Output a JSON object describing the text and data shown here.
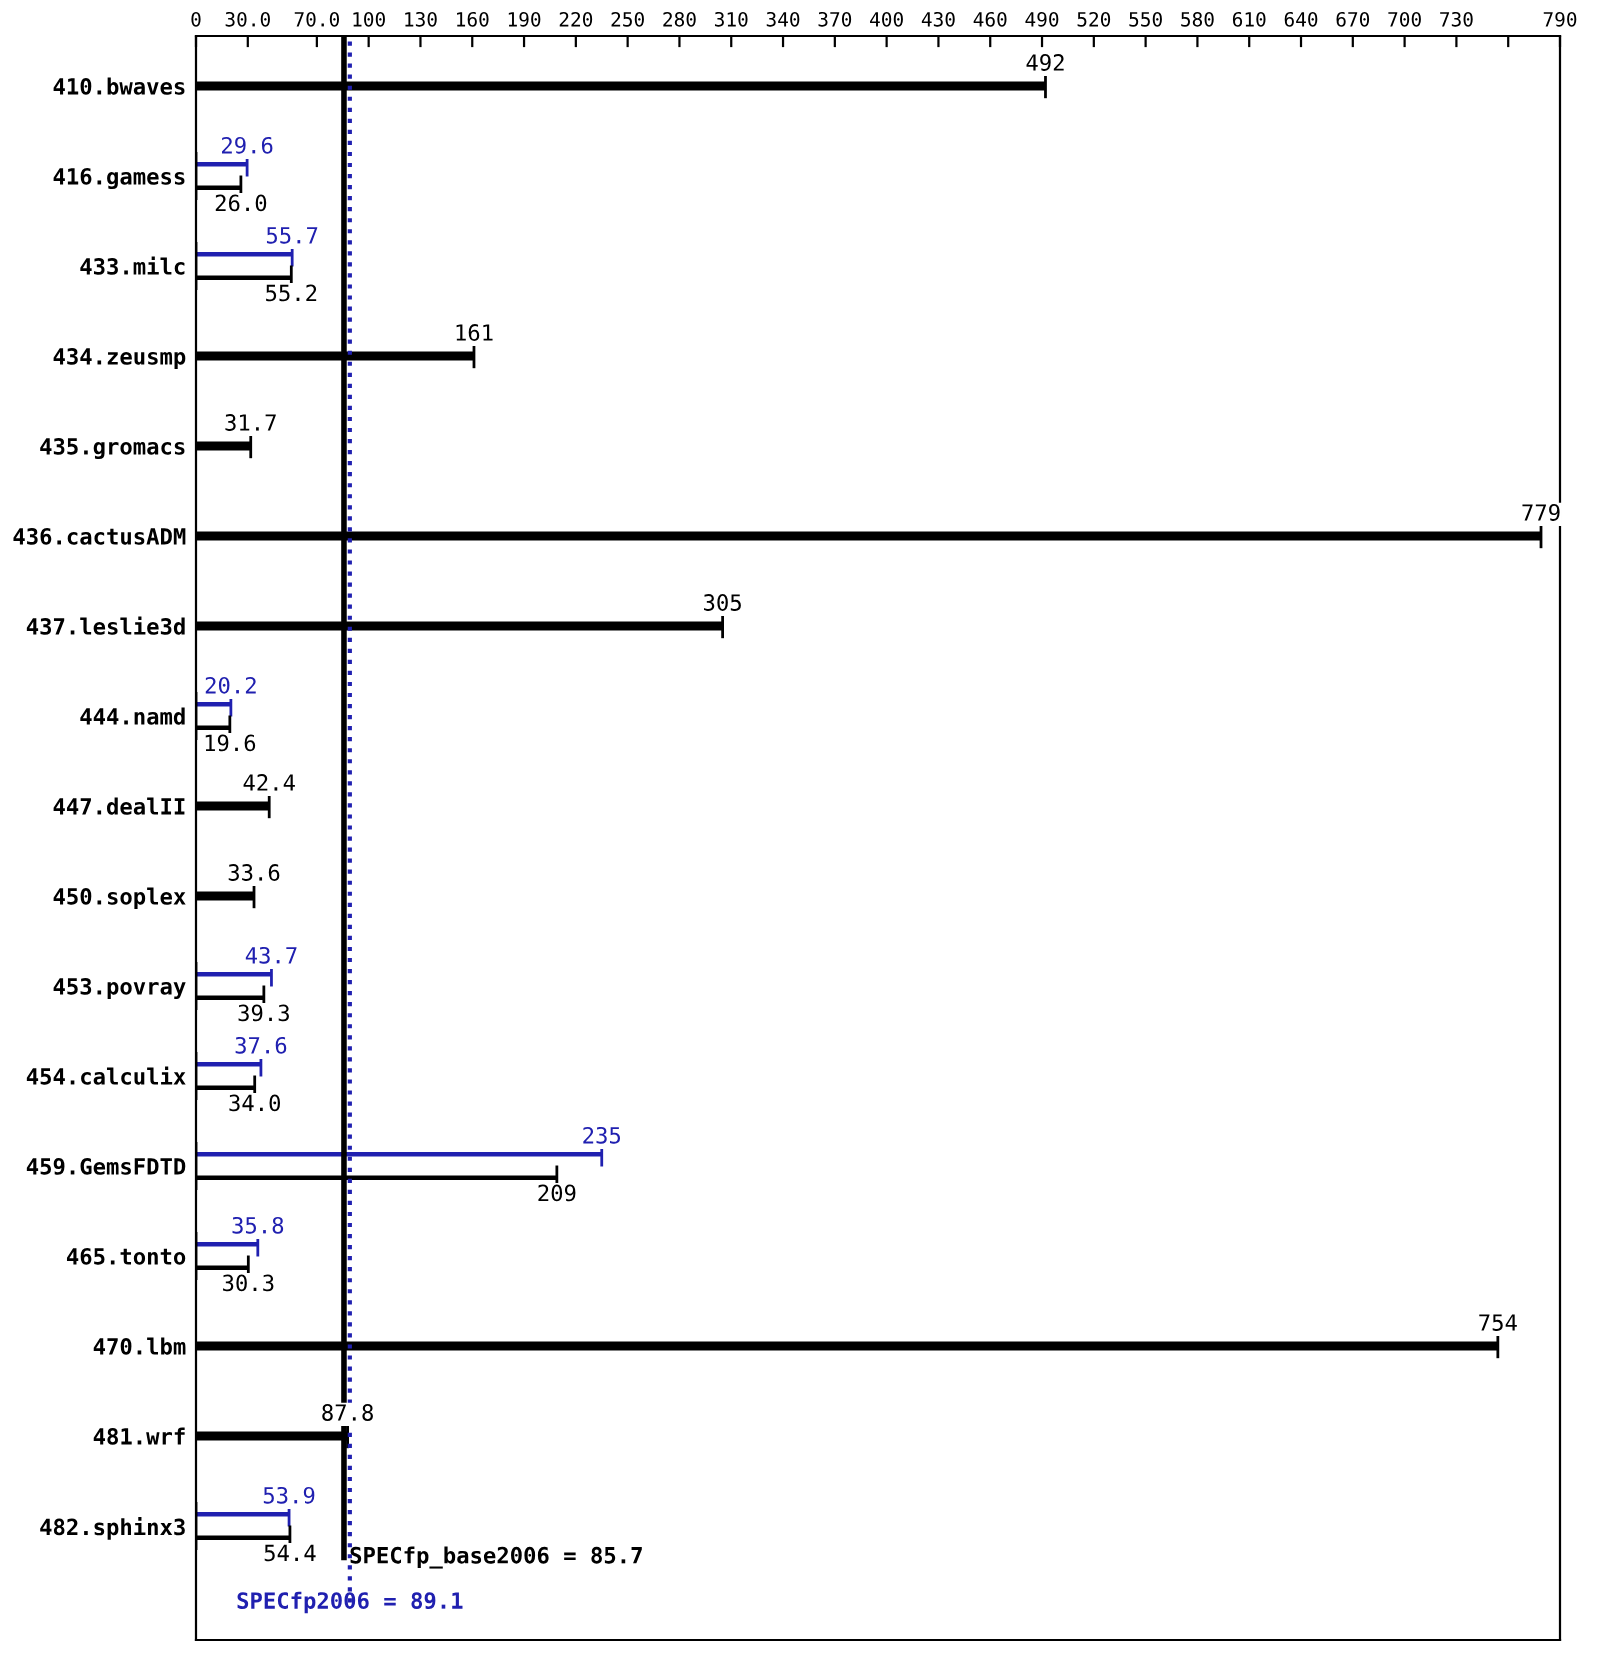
{
  "chart_data": {
    "type": "bar",
    "orientation": "horizontal",
    "categories": [
      "410.bwaves",
      "416.gamess",
      "433.milc",
      "434.zeusmp",
      "435.gromacs",
      "436.cactusADM",
      "437.leslie3d",
      "444.namd",
      "447.dealII",
      "450.soplex",
      "453.povray",
      "454.calculix",
      "459.GemsFDTD",
      "465.tonto",
      "470.lbm",
      "481.wrf",
      "482.sphinx3"
    ],
    "series": [
      {
        "name": null,
        "color": "#2020b0",
        "values": [
          null,
          29.6,
          55.7,
          null,
          null,
          null,
          null,
          20.2,
          null,
          null,
          43.7,
          37.6,
          235,
          35.8,
          null,
          null,
          53.9
        ],
        "value_labels": [
          null,
          "29.6",
          "55.7",
          null,
          null,
          null,
          null,
          "20.2",
          null,
          null,
          "43.7",
          "37.6",
          "235",
          "35.8",
          null,
          null,
          "53.9"
        ]
      },
      {
        "name": null,
        "color": "#000000",
        "values": [
          492,
          26.0,
          55.2,
          161,
          31.7,
          779,
          305,
          19.6,
          42.4,
          33.6,
          39.3,
          34.0,
          209,
          30.3,
          754,
          87.8,
          54.4
        ],
        "value_labels": [
          "492",
          "26.0",
          "55.2",
          "161",
          "31.7",
          "779",
          "305",
          "19.6",
          "42.4",
          "33.6",
          "39.3",
          "34.0",
          "209",
          "30.3",
          "754",
          "87.8",
          "54.4"
        ]
      }
    ],
    "xlim": [
      0,
      790
    ],
    "xticks": [
      0,
      {
        "value": 30,
        "label": "30.0"
      },
      {
        "value": 70,
        "label": "70.0"
      },
      100,
      130,
      160,
      190,
      220,
      250,
      280,
      310,
      340,
      370,
      400,
      430,
      460,
      490,
      520,
      550,
      580,
      610,
      640,
      670,
      700,
      730,
      {
        "value": 760,
        "label": null
      },
      790
    ],
    "grid": false,
    "ref_lines": [
      {
        "axis": "x",
        "value": 85.7,
        "label": "SPECfp_base2006 = 85.7",
        "color": "#000000",
        "line_style": "solid"
      },
      {
        "axis": "x",
        "value": 89.1,
        "label": "SPECfp2006 = 89.1",
        "color": "#2020b0",
        "line_style": "dotted"
      }
    ]
  }
}
